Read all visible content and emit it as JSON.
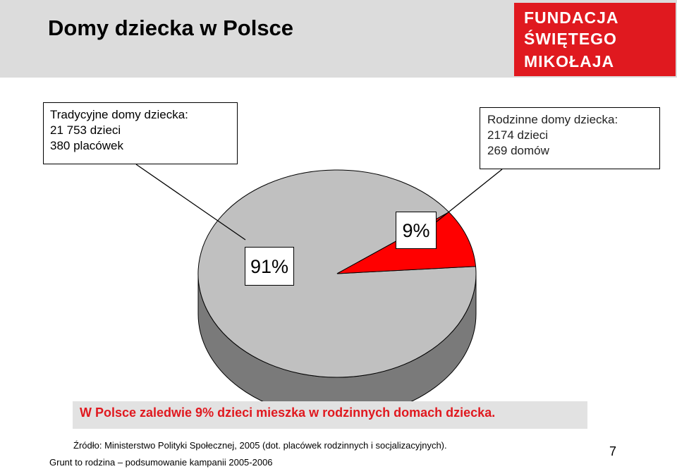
{
  "header": {
    "title": "Domy dziecka w Polsce",
    "logo_lines": [
      "FUNDACJA",
      "ŚWIĘTEGO",
      "MIKOŁAJA"
    ]
  },
  "callouts": {
    "traditional": [
      "Tradycyjne domy dziecka:",
      "21 753 dzieci",
      "380 placówek"
    ],
    "family": [
      "Rodzinne domy dziecka:",
      "2174 dzieci",
      "269 domów"
    ]
  },
  "chart_data": {
    "type": "pie",
    "title": "",
    "slices": [
      {
        "label": "91%",
        "value": 91,
        "color": "#c0c0c0"
      },
      {
        "label": "9%",
        "value": 9,
        "color": "#ff0000"
      }
    ],
    "legend": "none"
  },
  "conclusion": "W Polsce zaledwie 9% dzieci mieszka w rodzinnych domach dziecka.",
  "source": "Źródło: Ministerstwo Polityki Społecznej, 2005 (dot. placówek rodzinnych i socjalizacyjnych).",
  "footer": "Grunt to rodzina – podsumowanie kampanii 2005-2006",
  "page_number": "7",
  "colors": {
    "accent": "#e0191f",
    "header_band": "#dcdcdc",
    "pie_side": "#7a7a7a"
  }
}
